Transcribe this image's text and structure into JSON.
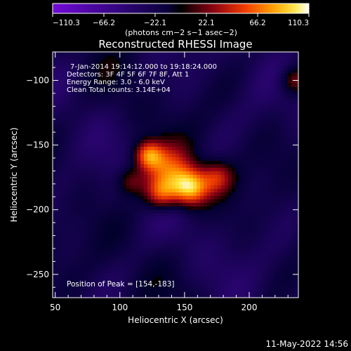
{
  "chart_data": {
    "type": "heatmap",
    "title": "Reconstructed RHESSI Image",
    "xlabel": "Heliocentric X (arcsec)",
    "ylabel": "Heliocentric Y (arcsec)",
    "xlim": [
      48,
      238
    ],
    "ylim": [
      -268,
      -78
    ],
    "x_ticks": [
      50,
      100,
      150,
      200
    ],
    "y_ticks": [
      -100,
      -150,
      -200,
      -250
    ],
    "colorbar": {
      "range": [
        -110.3,
        110.3
      ],
      "ticks": [
        "−110.3",
        "−66.2",
        "−22.1",
        "22.1",
        "66.2",
        "110.3"
      ],
      "unit_label": "(photons cm−2 s−1 asec−2)",
      "colormap": "purple-black-red-orange-yellow-white"
    },
    "annotations": [
      "7-Jan-2014 19:14:12.000 to 19:18:24.000",
      "Detectors: 3F 4F 5F 6F 7F 8F, Att 1",
      "Energy Range: 3.0 - 6.0 keV",
      "Clean     Total counts: 3.14E+04"
    ],
    "peak_label": "Position of Peak = [154,-183]",
    "peak": [
      154,
      -183
    ],
    "sources": [
      {
        "x": 154,
        "y": -183,
        "amplitude": 110,
        "sigma": 10
      },
      {
        "x": 122,
        "y": -158,
        "amplitude": 85,
        "sigma": 8
      },
      {
        "x": 132,
        "y": -188,
        "amplitude": 70,
        "sigma": 9
      },
      {
        "x": 175,
        "y": -175,
        "amplitude": 55,
        "sigma": 9
      },
      {
        "x": 138,
        "y": -170,
        "amplitude": 65,
        "sigma": 13
      },
      {
        "x": 108,
        "y": -178,
        "amplitude": 45,
        "sigma": 8
      },
      {
        "x": 235,
        "y": -100,
        "amplitude": 50,
        "sigma": 8
      }
    ],
    "date_stamp": "11-May-2022 14:56"
  }
}
